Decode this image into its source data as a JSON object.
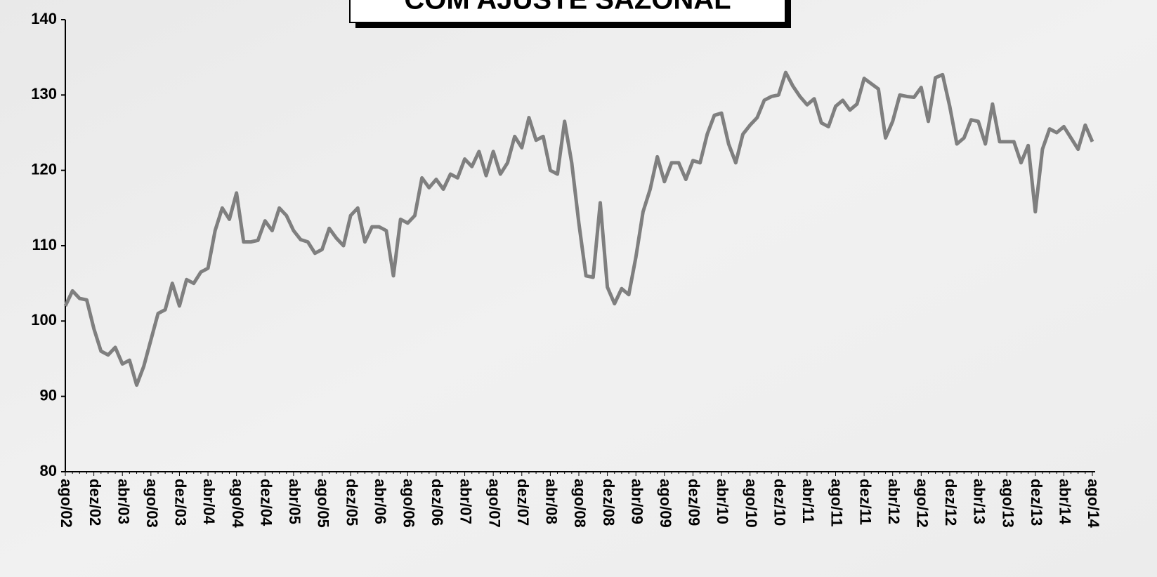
{
  "chart_data": {
    "type": "line",
    "title": "COM AJUSTE SAZONAL",
    "categories": [
      "ago/02",
      null,
      null,
      null,
      "dez/02",
      null,
      null,
      null,
      "abr/03",
      null,
      null,
      null,
      "ago/03",
      null,
      null,
      null,
      "dez/03",
      null,
      null,
      null,
      "abr/04",
      null,
      null,
      null,
      "ago/04",
      null,
      null,
      null,
      "dez/04",
      null,
      null,
      null,
      "abr/05",
      null,
      null,
      null,
      "ago/05",
      null,
      null,
      null,
      "dez/05",
      null,
      null,
      null,
      "abr/06",
      null,
      null,
      null,
      "ago/06",
      null,
      null,
      null,
      "dez/06",
      null,
      null,
      null,
      "abr/07",
      null,
      null,
      null,
      "ago/07",
      null,
      null,
      null,
      "dez/07",
      null,
      null,
      null,
      "abr/08",
      null,
      null,
      null,
      "ago/08",
      null,
      null,
      null,
      "dez/08",
      null,
      null,
      null,
      "abr/09",
      null,
      null,
      null,
      "ago/09",
      null,
      null,
      null,
      "dez/09",
      null,
      null,
      null,
      "abr/10",
      null,
      null,
      null,
      "ago/10",
      null,
      null,
      null,
      "dez/10",
      null,
      null,
      null,
      "abr/11",
      null,
      null,
      null,
      "ago/11",
      null,
      null,
      null,
      "dez/11",
      null,
      null,
      null,
      "abr/12",
      null,
      null,
      null,
      "ago/12",
      null,
      null,
      null,
      "dez/12",
      null,
      null,
      null,
      "abr/13",
      null,
      null,
      null,
      "ago/13",
      null,
      null,
      null,
      "dez/13",
      null,
      null,
      null,
      "abr/14",
      null,
      null,
      null,
      "ago/14"
    ],
    "series": [
      {
        "name": null,
        "color": "#7f7f7f",
        "values": [
          102,
          104,
          103,
          102.8,
          99,
          96,
          95.5,
          96.5,
          94.3,
          94.8,
          91.5,
          94,
          97.5,
          101,
          101.5,
          105,
          102,
          105.5,
          105,
          106.5,
          107,
          112,
          115,
          113.5,
          117,
          110.5,
          110.5,
          110.7,
          113.3,
          112,
          115,
          114,
          112,
          110.8,
          110.5,
          109,
          109.5,
          112.3,
          111,
          110,
          114,
          115,
          110.5,
          112.5,
          112.5,
          112,
          106,
          113.5,
          113,
          114,
          119,
          117.7,
          118.8,
          117.5,
          119.5,
          119,
          121.5,
          120.5,
          122.5,
          119.3,
          122.5,
          119.5,
          121,
          124.5,
          123,
          127,
          124,
          124.5,
          120,
          119.5,
          126.5,
          121,
          113,
          106,
          105.8,
          115.7,
          104.5,
          102.3,
          104.3,
          103.5,
          108.5,
          114.5,
          117.5,
          121.8,
          118.5,
          121,
          121,
          118.8,
          121.3,
          121,
          124.8,
          127.3,
          127.6,
          123.5,
          121,
          124.8,
          126,
          127,
          129.3,
          129.8,
          130,
          133,
          131.2,
          129.8,
          128.7,
          129.5,
          126.3,
          125.8,
          128.5,
          129.3,
          128,
          128.8,
          132.2,
          131.5,
          130.8,
          124.3,
          126.5,
          130,
          129.8,
          129.7,
          131,
          126.5,
          132.3,
          132.7,
          128.5,
          123.5,
          124.3,
          126.7,
          126.5,
          123.5,
          128.8,
          123.8,
          123.8,
          123.8,
          121,
          123.3,
          114.5,
          122.8,
          125.5,
          125,
          125.8,
          124.3,
          122.8,
          126,
          123.8
        ]
      }
    ],
    "ylim": [
      80,
      140
    ],
    "yticks": [
      80,
      90,
      100,
      110,
      120,
      130,
      140
    ]
  }
}
